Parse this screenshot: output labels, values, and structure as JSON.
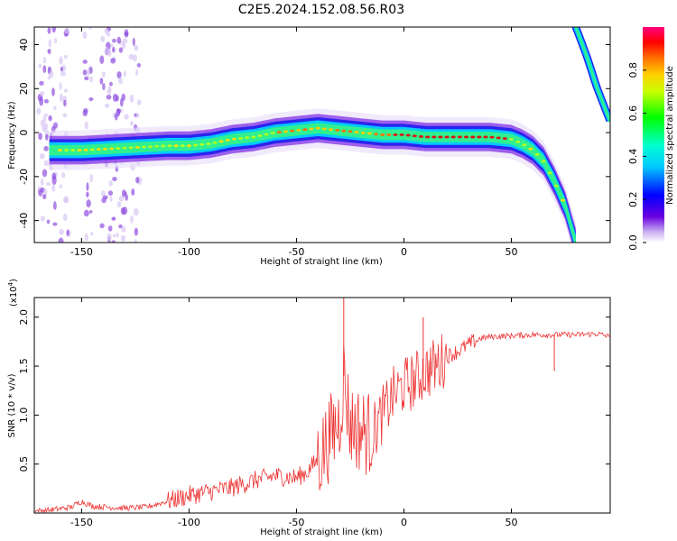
{
  "title": "C2E5.2024.152.08.56.R03",
  "chart_data": [
    {
      "type": "heatmap",
      "title": "C2E5.2024.152.08.56.R03",
      "xlabel": "Height of straight line (km)",
      "ylabel": "Frequency (Hz)",
      "xlim": [
        -172,
        96
      ],
      "ylim": [
        -50,
        48
      ],
      "xticks": [
        -150,
        -100,
        -50,
        0,
        50
      ],
      "xtick_labels": [
        "-150",
        "-100",
        "-50",
        "0",
        "50"
      ],
      "yticks": [
        40,
        20,
        0,
        -20,
        -40
      ],
      "ytick_labels": [
        "40",
        "20",
        "0",
        "-20",
        "-40"
      ],
      "ridge": {
        "x": [
          -165,
          -150,
          -130,
          -110,
          -100,
          -90,
          -80,
          -70,
          -60,
          -50,
          -40,
          -30,
          -20,
          -10,
          0,
          10,
          20,
          30,
          40,
          50,
          55,
          60,
          65,
          70,
          75,
          80
        ],
        "y": [
          -8,
          -8,
          -7,
          -6,
          -6,
          -5,
          -3,
          -2,
          0,
          1,
          2,
          1,
          0,
          -1,
          -1,
          -2,
          -2,
          -2,
          -2,
          -3,
          -5,
          -8,
          -13,
          -22,
          -33,
          -50
        ]
      },
      "ridge2": {
        "x": [
          80,
          85,
          90,
          96
        ],
        "y": [
          48,
          35,
          20,
          5
        ]
      },
      "colorbar": {
        "label": "Normalized spectral amplitude",
        "range": [
          0.0,
          1.0
        ],
        "ticks": [
          0.0,
          0.2,
          0.4,
          0.6,
          0.8
        ],
        "tick_labels": [
          "0.0",
          "0.2",
          "0.4",
          "0.6",
          "0.8"
        ]
      }
    },
    {
      "type": "line",
      "xlabel": "Height of straight line (km)",
      "ylabel": "SNR (10 * v/v)",
      "scale_label": "(x10",
      "scale_exp": "4",
      "scale_close": ")",
      "xlim": [
        -172,
        96
      ],
      "ylim": [
        0,
        2.2
      ],
      "xticks": [
        -150,
        -100,
        -50,
        0,
        50
      ],
      "xtick_labels": [
        "-150",
        "-100",
        "-50",
        "0",
        "50"
      ],
      "yticks": [
        0.5,
        1.0,
        1.5,
        2.0
      ],
      "ytick_labels": [
        "0.5",
        "1.0",
        "1.5",
        "2.0"
      ],
      "series": [
        {
          "name": "SNR",
          "color": "#ee3333",
          "x": [
            -172,
            -165,
            -155,
            -150,
            -145,
            -130,
            -120,
            -110,
            -100,
            -90,
            -80,
            -70,
            -60,
            -50,
            -45,
            -40,
            -35,
            -30,
            -28,
            -25,
            -20,
            -15,
            -10,
            -5,
            0,
            5,
            10,
            15,
            20,
            25,
            30,
            35,
            40,
            50,
            60,
            70,
            80,
            90,
            96
          ],
          "y": [
            0.02,
            0.03,
            0.06,
            0.12,
            0.07,
            0.05,
            0.06,
            0.12,
            0.18,
            0.22,
            0.26,
            0.33,
            0.38,
            0.36,
            0.42,
            0.55,
            0.75,
            0.95,
            1.4,
            0.9,
            0.85,
            0.8,
            1.0,
            1.2,
            1.3,
            1.35,
            1.45,
            1.5,
            1.6,
            1.65,
            1.72,
            1.78,
            1.8,
            1.81,
            1.82,
            1.82,
            1.82,
            1.83,
            1.8
          ]
        }
      ],
      "spikes": [
        {
          "x": -28,
          "y": 2.2
        },
        {
          "x": 9,
          "y": 2.0
        },
        {
          "x": 70,
          "y": 1.45
        }
      ]
    }
  ],
  "colors": {
    "snr_line": "#ee3333",
    "frame": "#000000"
  }
}
